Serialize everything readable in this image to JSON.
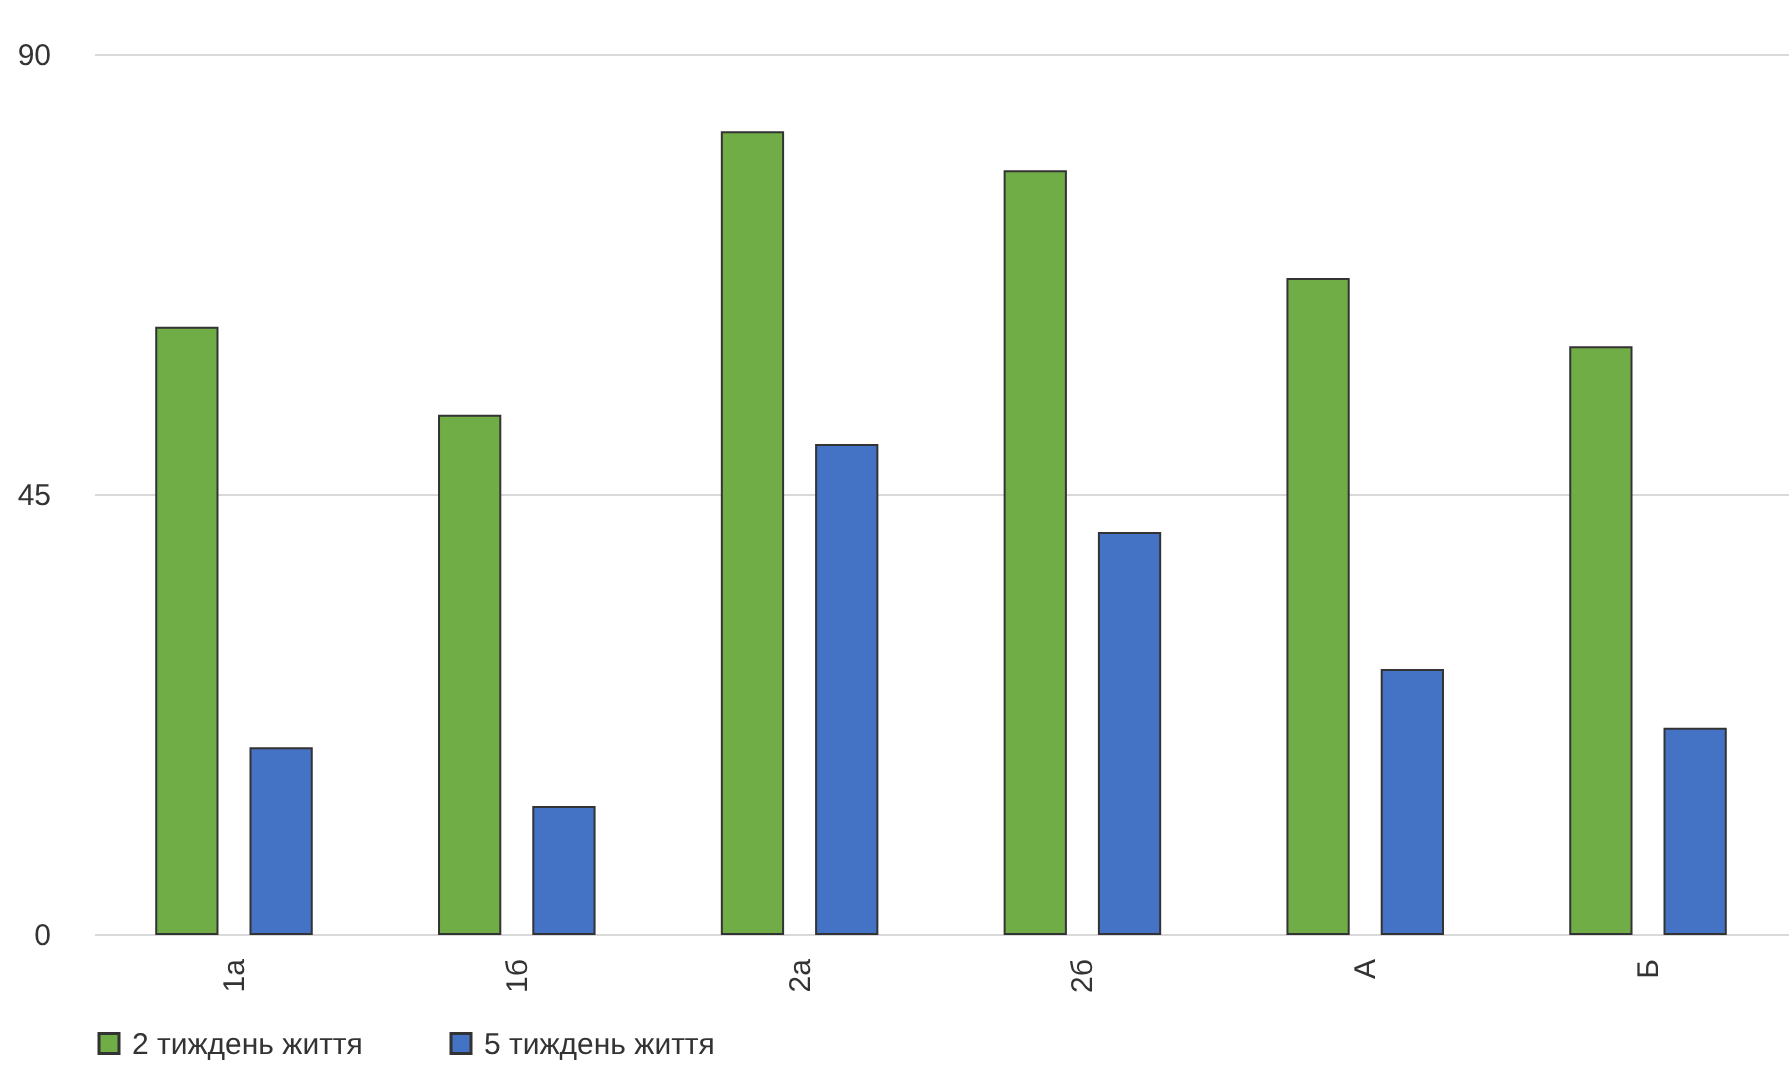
{
  "chart_data": {
    "type": "bar",
    "categories": [
      "1а",
      "1б",
      "2а",
      "2б",
      "А",
      "Б"
    ],
    "series": [
      {
        "name": "2 тиждень життя",
        "color": "#70ad47",
        "values": [
          62,
          53,
          82,
          78,
          67,
          60
        ]
      },
      {
        "name": "5 тиждень життя",
        "color": "#4472c4",
        "values": [
          19,
          13,
          50,
          41,
          27,
          21
        ]
      }
    ],
    "ylim": [
      0,
      90
    ],
    "yticks": [
      0,
      45,
      90
    ],
    "grid": "y",
    "legend": "bottom"
  }
}
